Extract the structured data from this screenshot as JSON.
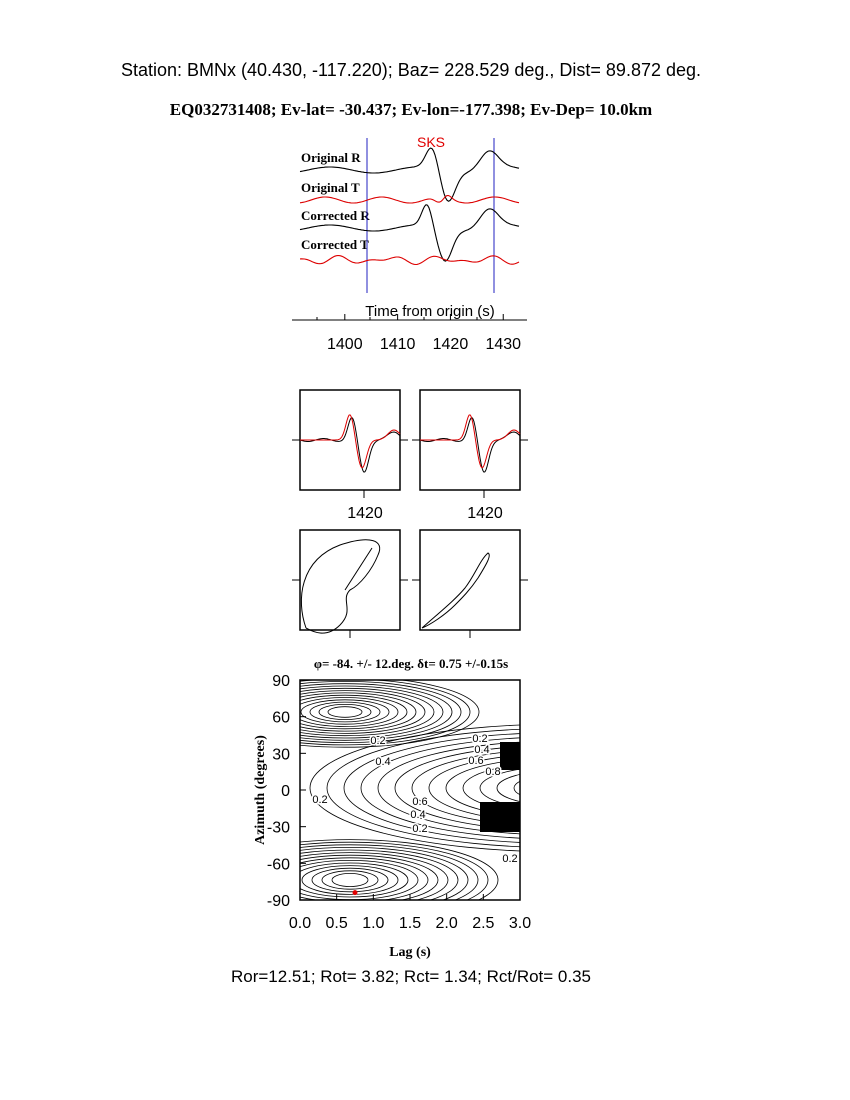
{
  "header": {
    "station": "Station: BMNx (40.430, -117.220); Baz=  228.529 deg., Dist=   89.872 deg.",
    "event": "EQ032731408; Ev-lat= -30.437; Ev-lon=-177.398; Ev-Dep= 10.0km"
  },
  "traces": {
    "phase": "SKS",
    "labels": [
      "Original R",
      "Original T",
      "Corrected R",
      "Corrected T"
    ],
    "xlabel": "Time from origin (s)",
    "xlim": [
      1390,
      1434.5
    ],
    "xticks": [
      1400,
      1410,
      1420,
      1430
    ]
  },
  "particle": {
    "xticks": [
      1420,
      1420
    ]
  },
  "contour": {
    "title": "φ= -84. +/- 12.deg. δt= 0.75 +/-0.15s",
    "xlabel": "Lag (s)",
    "ylabel": "Azimuth (degrees)",
    "xlim": [
      0,
      3
    ],
    "ylim": [
      -90,
      90
    ],
    "xticks": [
      {
        "value": 0,
        "label": "0.0"
      },
      {
        "value": 0.5,
        "label": "0.5"
      },
      {
        "value": 1,
        "label": "1.0"
      },
      {
        "value": 1.5,
        "label": "1.5"
      },
      {
        "value": 2,
        "label": "2.0"
      },
      {
        "value": 2.5,
        "label": "2.5"
      },
      {
        "value": 3,
        "label": "3.0"
      }
    ],
    "yticks": [
      90,
      60,
      30,
      0,
      -30,
      -60,
      -90
    ],
    "best": {
      "lag": 0.75,
      "azimuth": -84
    },
    "contour_labels": [
      "0.2",
      "0.4",
      "0.2",
      "0.4",
      "0.6",
      "0.8",
      "0.2",
      "0.6",
      "0.4",
      "0.2",
      "0.2"
    ]
  },
  "footer": "Ror=12.51; Rot= 3.82; Rct= 1.34; Rct/Rot= 0.35"
}
